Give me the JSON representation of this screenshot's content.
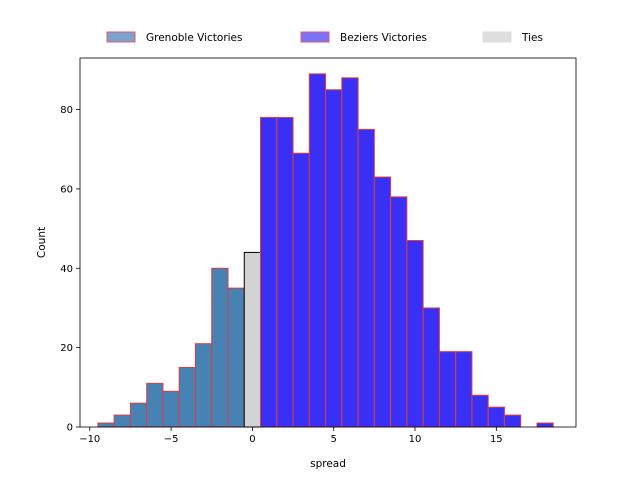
{
  "chart_data": {
    "type": "bar",
    "title": "",
    "xlabel": "spread",
    "ylabel": "Count",
    "xlim": [
      -10.6,
      19.9
    ],
    "ylim": [
      0,
      93
    ],
    "xticks": [
      -10,
      -5,
      0,
      5,
      10,
      15
    ],
    "yticks": [
      0,
      20,
      40,
      60,
      80
    ],
    "bin_width": 1,
    "legend_position": "top-center, above plot",
    "grid": false,
    "series": [
      {
        "name": "Grenoble Victories",
        "color": "#4682b4",
        "edgecolor": "#e03c3c",
        "bins": [
          {
            "x": -9,
            "count": 1
          },
          {
            "x": -8,
            "count": 3
          },
          {
            "x": -7,
            "count": 6
          },
          {
            "x": -6,
            "count": 11
          },
          {
            "x": -5,
            "count": 9
          },
          {
            "x": -4,
            "count": 15
          },
          {
            "x": -3,
            "count": 21
          },
          {
            "x": -2,
            "count": 40
          },
          {
            "x": -1,
            "count": 35
          }
        ]
      },
      {
        "name": "Ties",
        "color": "#d3d3d3",
        "edgecolor": "#000000",
        "bins": [
          {
            "x": 0,
            "count": 44
          }
        ]
      },
      {
        "name": "Beziers Victories",
        "color": "#3a2ff5",
        "edgecolor": "#e03c3c",
        "bins": [
          {
            "x": 1,
            "count": 78
          },
          {
            "x": 2,
            "count": 78
          },
          {
            "x": 3,
            "count": 69
          },
          {
            "x": 4,
            "count": 89
          },
          {
            "x": 5,
            "count": 85
          },
          {
            "x": 6,
            "count": 88
          },
          {
            "x": 7,
            "count": 75
          },
          {
            "x": 8,
            "count": 63
          },
          {
            "x": 9,
            "count": 58
          },
          {
            "x": 10,
            "count": 47
          },
          {
            "x": 11,
            "count": 30
          },
          {
            "x": 12,
            "count": 19
          },
          {
            "x": 13,
            "count": 19
          },
          {
            "x": 14,
            "count": 8
          },
          {
            "x": 15,
            "count": 5
          },
          {
            "x": 16,
            "count": 3
          },
          {
            "x": 18,
            "count": 1
          }
        ]
      }
    ],
    "legend": [
      {
        "label": "Grenoble Victories",
        "color": "#7ba3cb",
        "edgecolor": "#e05a7a"
      },
      {
        "label": "Beziers Victories",
        "color": "#7a73f7",
        "edgecolor": "#e05a7a"
      },
      {
        "label": "Ties",
        "color": "#dedede",
        "edgecolor": "#dedede"
      }
    ]
  }
}
